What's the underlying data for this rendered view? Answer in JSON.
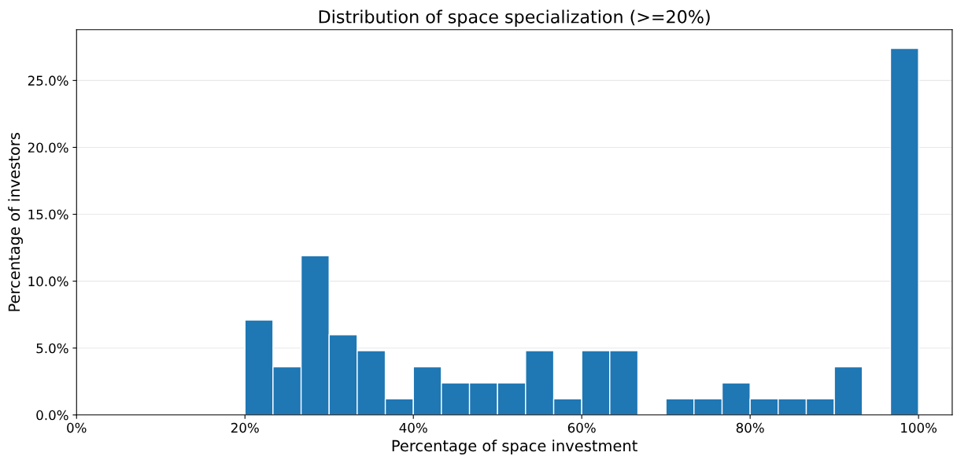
{
  "chart_data": {
    "type": "histogram",
    "title": "Distribution of space specialization (>=20%)",
    "xlabel": "Percentage of space investment",
    "ylabel": "Percentage of investors",
    "bins": [
      20,
      23.33,
      26.67,
      30,
      33.33,
      36.67,
      40,
      43.33,
      46.67,
      50,
      53.33,
      56.67,
      60,
      63.33,
      66.67,
      70,
      73.33,
      76.67,
      80,
      83.33,
      86.67,
      90,
      93.33,
      96.67,
      100
    ],
    "values": [
      7.1,
      3.6,
      11.9,
      6.0,
      4.8,
      1.2,
      3.6,
      2.4,
      2.4,
      2.4,
      4.8,
      1.2,
      4.8,
      4.8,
      0,
      1.2,
      1.2,
      2.4,
      1.2,
      1.2,
      1.2,
      3.6,
      0,
      27.4
    ],
    "color": "#1f77b4",
    "xlim": [
      0,
      104
    ],
    "ylim": [
      0,
      28.8
    ],
    "xticks": [
      {
        "value": 0,
        "label": "0%"
      },
      {
        "value": 20,
        "label": "20%"
      },
      {
        "value": 40,
        "label": "40%"
      },
      {
        "value": 60,
        "label": "60%"
      },
      {
        "value": 80,
        "label": "80%"
      },
      {
        "value": 100,
        "label": "100%"
      }
    ],
    "yticks": [
      {
        "value": 0,
        "label": "0.0%"
      },
      {
        "value": 5,
        "label": "5.0%"
      },
      {
        "value": 10,
        "label": "10.0%"
      },
      {
        "value": 15,
        "label": "15.0%"
      },
      {
        "value": 20,
        "label": "20.0%"
      },
      {
        "value": 25,
        "label": "25.0%"
      }
    ],
    "grid": "y"
  }
}
